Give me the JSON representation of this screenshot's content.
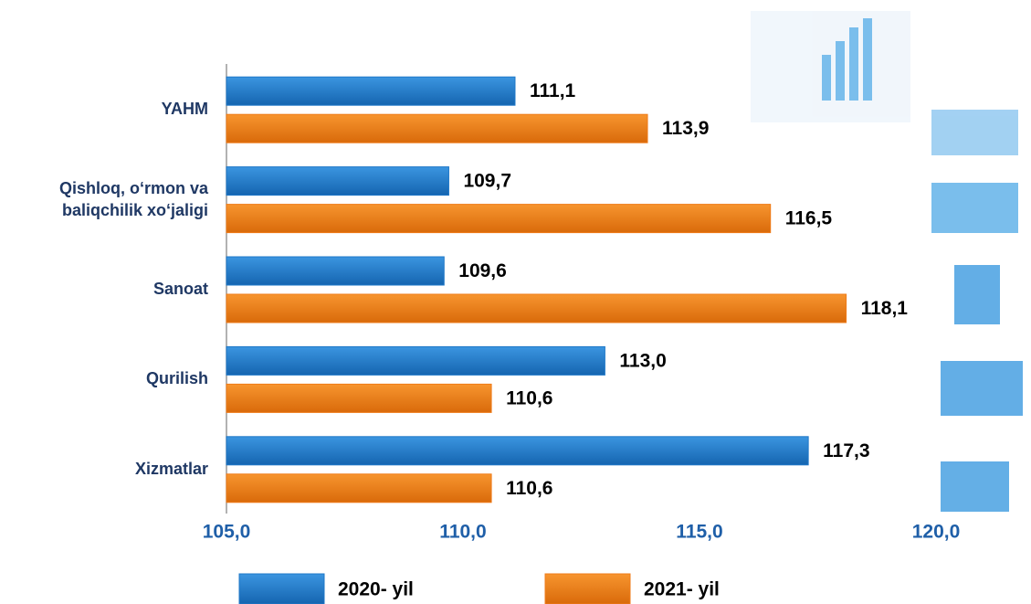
{
  "chart_data": {
    "type": "bar",
    "orientation": "horizontal",
    "categories": [
      "YAHM",
      "Qishloq, o‘rmon va baliqchilik xo‘jaligi",
      "Sanoat",
      "Qurilish",
      "Xizmatlar"
    ],
    "series": [
      {
        "name": "2020- yil",
        "color": "#1f78c8",
        "values": [
          111.1,
          109.7,
          109.6,
          113.0,
          117.3
        ],
        "value_labels": [
          "111,1",
          "109,7",
          "109,6",
          "113,0",
          "117,3"
        ]
      },
      {
        "name": "2021- yil",
        "color": "#ef7b18",
        "values": [
          113.9,
          116.5,
          118.1,
          110.6,
          110.6
        ],
        "value_labels": [
          "113,9",
          "116,5",
          "118,1",
          "110,6",
          "110,6"
        ]
      }
    ],
    "xlim": [
      105,
      120
    ],
    "xticks": [
      {
        "value": 105,
        "label": "105,0"
      },
      {
        "value": 110,
        "label": "110,0"
      },
      {
        "value": 115,
        "label": "115,0"
      },
      {
        "value": 120,
        "label": "120,0"
      }
    ],
    "legend": "bottom"
  }
}
